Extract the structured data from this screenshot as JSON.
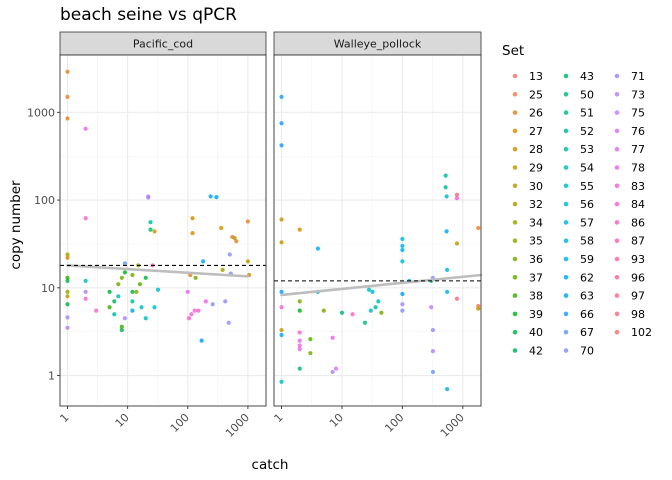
{
  "chart_data": {
    "type": "scatter",
    "title": "beach seine vs qPCR",
    "xlabel": "catch",
    "ylabel": "copy number",
    "x_scale": "log10",
    "y_scale": "log10",
    "xlim": [
      0.75,
      2000
    ],
    "ylim": [
      0.45,
      4500
    ],
    "x_ticks": [
      1,
      10,
      100,
      1000
    ],
    "x_tick_labels": [
      "1",
      "10",
      "100",
      "1000"
    ],
    "y_ticks": [
      1,
      10,
      100,
      1000
    ],
    "y_tick_labels": [
      "1",
      "10",
      "100",
      "1000"
    ],
    "grid": true,
    "legend_position": "right",
    "legend_title": "Set",
    "sets": [
      "13",
      "25",
      "26",
      "27",
      "28",
      "29",
      "30",
      "32",
      "34",
      "35",
      "36",
      "37",
      "38",
      "39",
      "40",
      "42",
      "43",
      "50",
      "51",
      "52",
      "53",
      "54",
      "55",
      "56",
      "57",
      "58",
      "59",
      "62",
      "63",
      "66",
      "67",
      "70",
      "71",
      "73",
      "75",
      "76",
      "77",
      "78",
      "83",
      "84",
      "86",
      "87",
      "93",
      "96",
      "97",
      "98",
      "102"
    ],
    "set_colors": [
      "#F8766D",
      "#F17D51",
      "#E88526",
      "#DF8C00",
      "#D59100",
      "#C99800",
      "#BC9D00",
      "#AEA200",
      "#9EA700",
      "#8BAB00",
      "#75AF00",
      "#5BB300",
      "#35B600",
      "#00B81F",
      "#00BA42",
      "#00BC59",
      "#00BD6D",
      "#00BF7D",
      "#00C08D",
      "#00C19C",
      "#00C1AA",
      "#00C0B8",
      "#00BFC4",
      "#00BDD0",
      "#00BADC",
      "#00B7E7",
      "#00B2F3",
      "#00ADFA",
      "#00A6FF",
      "#1E9FFF",
      "#6A98FF",
      "#8C92FF",
      "#A58AFF",
      "#B983FF",
      "#CA7DFF",
      "#D874FD",
      "#E46DF4",
      "#EF67EB",
      "#F763E0",
      "#FD61D3",
      "#FF61C5",
      "#FF63B6",
      "#FF66A6",
      "#FF6A95",
      "#FF6C91",
      "#FB6F84",
      "#F8766D"
    ],
    "panels": [
      {
        "strip": "Pacific_cod",
        "hline_y": 18,
        "trend": [
          [
            1,
            18
          ],
          [
            1000,
            13.5
          ]
        ],
        "points": [
          [
            1,
            2900,
            26
          ],
          [
            1,
            1500,
            26
          ],
          [
            1,
            850,
            26
          ],
          [
            1,
            24,
            32
          ],
          [
            1,
            22,
            28
          ],
          [
            1,
            13,
            38
          ],
          [
            1,
            12,
            42
          ],
          [
            1,
            9,
            34
          ],
          [
            1,
            8,
            30
          ],
          [
            1,
            6.5,
            40
          ],
          [
            1,
            4.6,
            71
          ],
          [
            1,
            3.5,
            73
          ],
          [
            2,
            650,
            78
          ],
          [
            2,
            62,
            84
          ],
          [
            2,
            12,
            56
          ],
          [
            2,
            9,
            73
          ],
          [
            2,
            7.5,
            83
          ],
          [
            3,
            5.5,
            84
          ],
          [
            5,
            9,
            40
          ],
          [
            5,
            6,
            38
          ],
          [
            6,
            7,
            42
          ],
          [
            6,
            5,
            52
          ],
          [
            7,
            11,
            36
          ],
          [
            7,
            8,
            54
          ],
          [
            8,
            13,
            36
          ],
          [
            8,
            3.3,
            42
          ],
          [
            8,
            3.6,
            38
          ],
          [
            9,
            19,
            67
          ],
          [
            9,
            15,
            39
          ],
          [
            9,
            4.5,
            71
          ],
          [
            12,
            14,
            36
          ],
          [
            12,
            9,
            40
          ],
          [
            12,
            7,
            52
          ],
          [
            12,
            5.5,
            63
          ],
          [
            14,
            9,
            35
          ],
          [
            15,
            18,
            34
          ],
          [
            16,
            11,
            37
          ],
          [
            17,
            6,
            56
          ],
          [
            20,
            13,
            40
          ],
          [
            20,
            4.5,
            54
          ],
          [
            22,
            107,
            71
          ],
          [
            22,
            110,
            73
          ],
          [
            24,
            56,
            52
          ],
          [
            24,
            46,
            50
          ],
          [
            26,
            18,
            86
          ],
          [
            28,
            44,
            29
          ],
          [
            28,
            6,
            56
          ],
          [
            32,
            9.5,
            56
          ],
          [
            100,
            9,
            78
          ],
          [
            105,
            4.5,
            84
          ],
          [
            110,
            14,
            26
          ],
          [
            115,
            5,
            86
          ],
          [
            120,
            62,
            28
          ],
          [
            120,
            42,
            28
          ],
          [
            130,
            5.5,
            78
          ],
          [
            135,
            13,
            36
          ],
          [
            150,
            5.5,
            87
          ],
          [
            170,
            2.5,
            63
          ],
          [
            180,
            20,
            63
          ],
          [
            200,
            7,
            83
          ],
          [
            240,
            110,
            63
          ],
          [
            260,
            6.5,
            70
          ],
          [
            300,
            108,
            63
          ],
          [
            360,
            48,
            28
          ],
          [
            380,
            16,
            34
          ],
          [
            420,
            7,
            70
          ],
          [
            480,
            4,
            70
          ],
          [
            500,
            24,
            70
          ],
          [
            520,
            14.5,
            70
          ],
          [
            550,
            38,
            25
          ],
          [
            600,
            37,
            32
          ],
          [
            640,
            34,
            26
          ],
          [
            1000,
            57,
            26
          ],
          [
            1000,
            20,
            30
          ],
          [
            1050,
            14,
            28
          ]
        ]
      },
      {
        "strip": "Walleye_pollock",
        "hline_y": 12,
        "trend": [
          [
            1,
            8.3
          ],
          [
            2000,
            14
          ]
        ],
        "points": [
          [
            1,
            1500,
            66
          ],
          [
            1,
            750,
            66
          ],
          [
            1,
            420,
            66
          ],
          [
            1,
            60,
            29
          ],
          [
            1,
            33,
            29
          ],
          [
            1,
            9,
            63
          ],
          [
            1,
            6,
            83
          ],
          [
            1,
            3.3,
            29
          ],
          [
            1,
            2.9,
            62
          ],
          [
            1,
            0.85,
            55
          ],
          [
            2,
            46,
            28
          ],
          [
            2,
            7,
            36
          ],
          [
            2,
            5.5,
            39
          ],
          [
            2,
            3.1,
            84
          ],
          [
            2,
            2.2,
            78
          ],
          [
            2,
            2.5,
            78
          ],
          [
            2,
            2,
            78
          ],
          [
            2,
            1.2,
            43
          ],
          [
            3,
            2.6,
            37
          ],
          [
            3,
            1.8,
            36
          ],
          [
            4,
            28,
            59
          ],
          [
            4,
            9,
            63
          ],
          [
            5,
            5.5,
            36
          ],
          [
            7,
            2.7,
            78
          ],
          [
            7,
            1.1,
            71
          ],
          [
            8,
            1.2,
            76
          ],
          [
            10,
            5.2,
            43
          ],
          [
            15,
            5,
            86
          ],
          [
            24,
            4,
            50
          ],
          [
            28,
            9.5,
            55
          ],
          [
            30,
            5.5,
            55
          ],
          [
            32,
            9,
            57
          ],
          [
            36,
            6,
            52
          ],
          [
            40,
            7,
            54
          ],
          [
            45,
            5.2,
            36
          ],
          [
            100,
            36,
            57
          ],
          [
            100,
            30,
            59
          ],
          [
            100,
            27,
            59
          ],
          [
            100,
            20,
            57
          ],
          [
            100,
            8.5,
            63
          ],
          [
            100,
            6.5,
            71
          ],
          [
            100,
            5.5,
            70
          ],
          [
            130,
            12,
            58
          ],
          [
            300,
            12,
            52
          ],
          [
            320,
            13,
            70
          ],
          [
            300,
            6,
            73
          ],
          [
            320,
            3.3,
            70
          ],
          [
            320,
            1.9,
            73
          ],
          [
            320,
            1.1,
            67
          ],
          [
            520,
            190,
            52
          ],
          [
            520,
            140,
            52
          ],
          [
            540,
            110,
            54
          ],
          [
            540,
            44,
            62
          ],
          [
            550,
            16,
            58
          ],
          [
            550,
            9,
            58
          ],
          [
            550,
            0.7,
            58
          ],
          [
            800,
            115,
            98
          ],
          [
            800,
            105,
            84
          ],
          [
            800,
            32,
            30
          ],
          [
            800,
            7.5,
            98
          ],
          [
            1800,
            48,
            26
          ],
          [
            1800,
            6.2,
            25
          ],
          [
            1800,
            5.8,
            30
          ]
        ]
      }
    ]
  }
}
